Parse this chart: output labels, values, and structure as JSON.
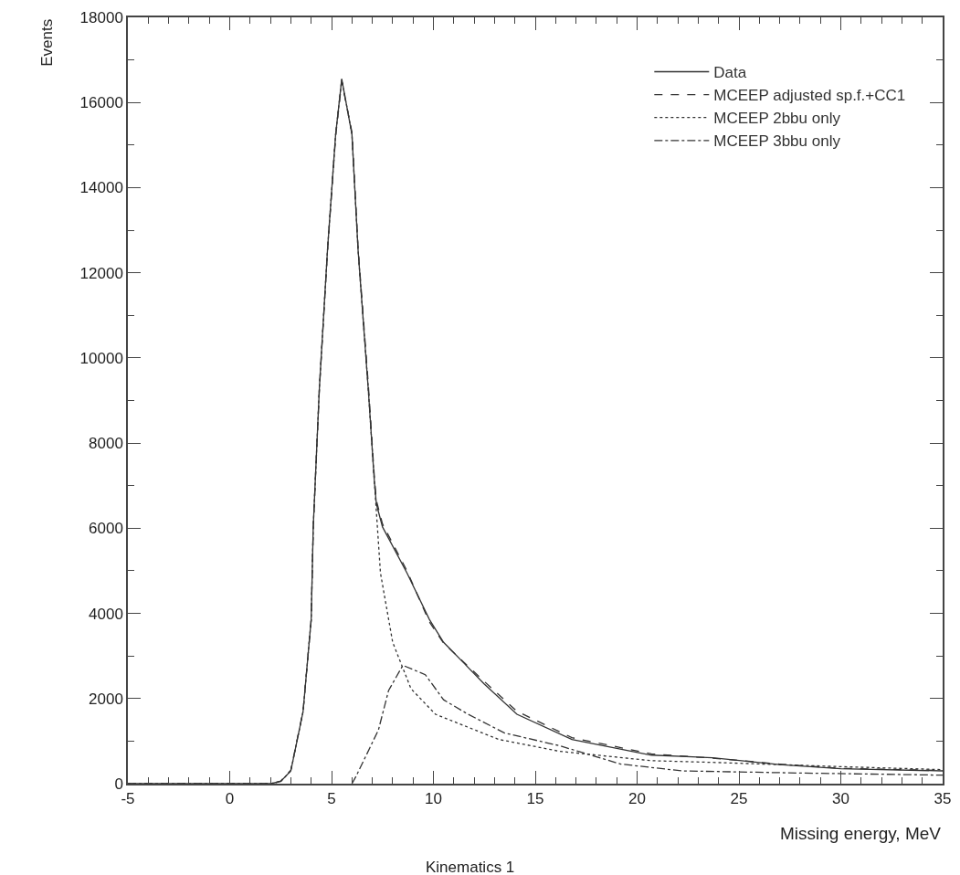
{
  "chart_data": {
    "type": "line",
    "xlabel": "Missing energy, MeV",
    "ylabel": "Events",
    "annotations": [
      "Kinematics 1"
    ],
    "xlim": [
      -5,
      35
    ],
    "xticks": [
      -5,
      0,
      5,
      10,
      15,
      20,
      25,
      30,
      35
    ],
    "ylim": [
      0,
      18000
    ],
    "yticks": [
      0,
      2000,
      4000,
      6000,
      8000,
      10000,
      12000,
      14000,
      16000,
      18000
    ],
    "legend": "top right",
    "marker": "none",
    "series": [
      {
        "name": "Data",
        "color": "#333333",
        "line_style": "solid",
        "x": [
          -5,
          0,
          2,
          2.5,
          3,
          3.6,
          4.0,
          4.1,
          4.4,
          4.8,
          5.2,
          5.5,
          6.0,
          6.3,
          6.8,
          7.1,
          7.2,
          7.5,
          8.7,
          9.8,
          10.5,
          12.5,
          14.1,
          16.8,
          20.7,
          23.7,
          27,
          30,
          35
        ],
        "values": [
          0,
          0,
          0,
          50,
          300,
          1690,
          3860,
          6030,
          9280,
          12540,
          15250,
          16550,
          15250,
          12540,
          9280,
          7110,
          6570,
          6030,
          4950,
          3860,
          3320,
          2340,
          1630,
          1040,
          670,
          610,
          450,
          350,
          300
        ]
      },
      {
        "name": "MCEEP adjusted sp.f.+CC1",
        "color": "#333333",
        "line_style": "dashed",
        "x": [
          -5,
          0,
          2,
          2.5,
          3,
          3.6,
          4.0,
          4.1,
          4.4,
          4.8,
          5.2,
          5.5,
          6.0,
          6.3,
          6.8,
          7.1,
          7.2,
          7.5,
          8.7,
          9.8,
          10.5,
          12.5,
          14.1,
          16.8,
          20.7,
          23.7,
          27,
          30,
          35
        ],
        "values": [
          0,
          0,
          0,
          60,
          320,
          1700,
          3850,
          6000,
          9250,
          12500,
          15200,
          16500,
          15300,
          12600,
          9400,
          7200,
          6650,
          6100,
          5000,
          3800,
          3300,
          2400,
          1700,
          1080,
          700,
          600,
          460,
          360,
          310
        ]
      },
      {
        "name": "MCEEP 2bbu only",
        "color": "#333333",
        "line_style": "dotted",
        "x": [
          -5,
          0,
          2,
          2.5,
          3,
          3.6,
          4.0,
          4.1,
          4.4,
          4.8,
          5.2,
          5.5,
          6.0,
          6.3,
          6.8,
          7.1,
          7.4,
          8.0,
          8.9,
          10.1,
          13.2,
          16.2,
          20.7,
          23.7,
          30,
          35
        ],
        "values": [
          0,
          0,
          0,
          50,
          300,
          1690,
          3860,
          6030,
          9280,
          12540,
          15250,
          16550,
          15250,
          12540,
          9280,
          7110,
          4950,
          3320,
          2230,
          1630,
          1040,
          760,
          540,
          500,
          400,
          330
        ]
      },
      {
        "name": "MCEEP 3bbu only",
        "color": "#333333",
        "line_style": "dashdot",
        "x": [
          6.0,
          6.2,
          7.3,
          7.8,
          8.5,
          9.6,
          10.5,
          11.7,
          13.5,
          16.2,
          19.2,
          22.2,
          28,
          35
        ],
        "values": [
          0,
          170,
          1260,
          2190,
          2780,
          2560,
          1970,
          1630,
          1190,
          890,
          460,
          300,
          250,
          200
        ]
      }
    ]
  }
}
